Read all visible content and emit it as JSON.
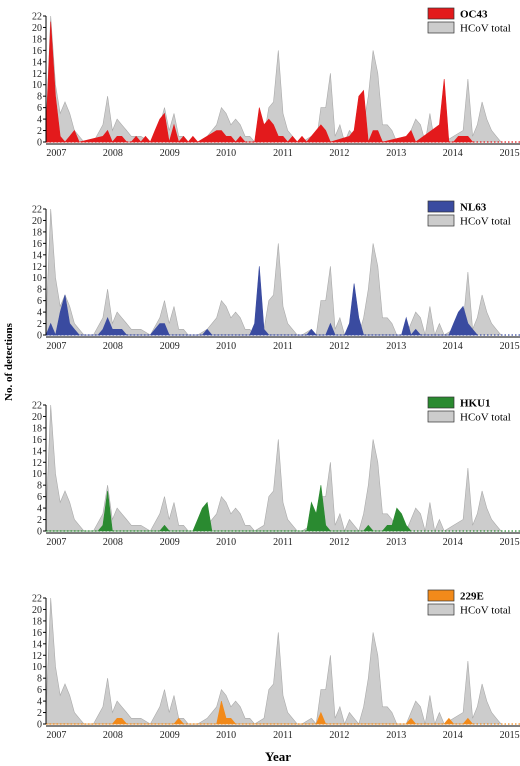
{
  "chart_data": {
    "type": "area",
    "ylabel": "No. of detections",
    "xlabel": "Year",
    "ylim": [
      0,
      22
    ],
    "yticks": [
      "0",
      "2",
      "4",
      "6",
      "8",
      "10",
      "12",
      "14",
      "16",
      "18",
      "20",
      "22"
    ],
    "xlim": [
      0,
      100
    ],
    "year_ticks": [
      {
        "label": "2007",
        "x": 2.2
      },
      {
        "label": "2008",
        "x": 14.1
      },
      {
        "label": "2009",
        "x": 26.1
      },
      {
        "label": "2010",
        "x": 38.0
      },
      {
        "label": "2011",
        "x": 50.0
      },
      {
        "label": "2012",
        "x": 61.9
      },
      {
        "label": "2013",
        "x": 73.9
      },
      {
        "label": "2014",
        "x": 85.8
      },
      {
        "label": "2015",
        "x": 97.8
      }
    ],
    "total": {
      "name": "HCoV total",
      "color": "#cccccc",
      "points": [
        [
          0,
          2
        ],
        [
          1,
          22
        ],
        [
          2,
          10
        ],
        [
          3,
          5
        ],
        [
          4,
          7
        ],
        [
          5,
          5
        ],
        [
          6,
          2
        ],
        [
          7,
          1
        ],
        [
          8,
          0
        ],
        [
          10,
          0
        ],
        [
          12,
          3
        ],
        [
          13,
          8
        ],
        [
          14,
          2
        ],
        [
          15,
          4
        ],
        [
          16,
          3
        ],
        [
          17,
          2
        ],
        [
          18,
          1
        ],
        [
          20,
          1
        ],
        [
          22,
          0
        ],
        [
          24,
          3
        ],
        [
          25,
          6
        ],
        [
          26,
          2
        ],
        [
          27,
          5
        ],
        [
          28,
          1
        ],
        [
          29,
          1
        ],
        [
          30,
          0
        ],
        [
          32,
          0
        ],
        [
          34,
          1
        ],
        [
          36,
          3
        ],
        [
          37,
          6
        ],
        [
          38,
          5
        ],
        [
          39,
          3
        ],
        [
          40,
          4
        ],
        [
          41,
          3
        ],
        [
          42,
          1
        ],
        [
          43,
          1
        ],
        [
          44,
          0
        ],
        [
          46,
          1
        ],
        [
          47,
          6
        ],
        [
          48,
          7
        ],
        [
          49,
          16
        ],
        [
          50,
          5
        ],
        [
          51,
          2
        ],
        [
          52,
          1
        ],
        [
          53,
          0
        ],
        [
          54,
          0
        ],
        [
          56,
          1
        ],
        [
          57,
          0
        ],
        [
          58,
          6
        ],
        [
          59,
          6
        ],
        [
          60,
          12
        ],
        [
          61,
          1
        ],
        [
          62,
          3
        ],
        [
          63,
          0
        ],
        [
          64,
          2
        ],
        [
          65,
          1
        ],
        [
          66,
          0
        ],
        [
          67,
          3
        ],
        [
          68,
          8
        ],
        [
          69,
          16
        ],
        [
          70,
          12
        ],
        [
          71,
          3
        ],
        [
          72,
          3
        ],
        [
          73,
          2
        ],
        [
          74,
          0
        ],
        [
          76,
          0
        ],
        [
          78,
          4
        ],
        [
          79,
          3
        ],
        [
          80,
          0
        ],
        [
          81,
          5
        ],
        [
          82,
          0
        ],
        [
          83,
          2
        ],
        [
          84,
          0
        ],
        [
          86,
          1
        ],
        [
          88,
          2
        ],
        [
          89,
          11
        ],
        [
          90,
          1
        ],
        [
          91,
          3
        ],
        [
          92,
          7
        ],
        [
          93,
          4
        ],
        [
          94,
          2
        ],
        [
          95,
          1
        ],
        [
          96,
          0
        ]
      ]
    },
    "panels": [
      {
        "name": "OC43",
        "color": "#e31a1c",
        "points": [
          [
            0,
            2
          ],
          [
            1,
            21
          ],
          [
            2,
            8
          ],
          [
            3,
            1
          ],
          [
            4,
            0
          ],
          [
            5,
            1
          ],
          [
            6,
            2
          ],
          [
            7,
            0
          ],
          [
            12,
            1
          ],
          [
            13,
            2
          ],
          [
            14,
            0
          ],
          [
            15,
            1
          ],
          [
            16,
            1
          ],
          [
            17,
            0
          ],
          [
            18,
            0
          ],
          [
            19,
            1
          ],
          [
            20,
            0
          ],
          [
            21,
            1
          ],
          [
            22,
            0
          ],
          [
            23,
            2
          ],
          [
            24,
            4
          ],
          [
            25,
            5
          ],
          [
            26,
            0
          ],
          [
            27,
            3
          ],
          [
            28,
            0
          ],
          [
            29,
            1
          ],
          [
            30,
            0
          ],
          [
            31,
            1
          ],
          [
            32,
            0
          ],
          [
            36,
            2
          ],
          [
            37,
            2
          ],
          [
            38,
            1
          ],
          [
            39,
            1
          ],
          [
            40,
            0
          ],
          [
            41,
            1
          ],
          [
            42,
            0
          ],
          [
            44,
            0
          ],
          [
            45,
            6
          ],
          [
            46,
            3
          ],
          [
            47,
            4
          ],
          [
            48,
            3
          ],
          [
            49,
            1
          ],
          [
            50,
            1
          ],
          [
            51,
            0
          ],
          [
            52,
            1
          ],
          [
            53,
            0
          ],
          [
            54,
            1
          ],
          [
            55,
            0
          ],
          [
            57,
            2
          ],
          [
            58,
            3
          ],
          [
            59,
            2
          ],
          [
            60,
            0
          ],
          [
            64,
            1
          ],
          [
            65,
            2
          ],
          [
            66,
            8
          ],
          [
            67,
            9
          ],
          [
            68,
            0
          ],
          [
            69,
            2
          ],
          [
            70,
            2
          ],
          [
            71,
            0
          ],
          [
            76,
            1
          ],
          [
            77,
            2
          ],
          [
            78,
            0
          ],
          [
            83,
            3
          ],
          [
            84,
            11
          ],
          [
            85,
            0
          ],
          [
            86,
            0
          ],
          [
            87,
            1
          ],
          [
            88,
            1
          ],
          [
            89,
            1
          ],
          [
            90,
            0
          ]
        ]
      },
      {
        "name": "NL63",
        "color": "#3a4ba0",
        "points": [
          [
            0,
            0
          ],
          [
            1,
            2
          ],
          [
            2,
            0
          ],
          [
            3,
            4
          ],
          [
            4,
            7
          ],
          [
            5,
            2
          ],
          [
            6,
            1
          ],
          [
            7,
            0
          ],
          [
            11,
            0
          ],
          [
            12,
            1
          ],
          [
            13,
            3
          ],
          [
            14,
            1
          ],
          [
            15,
            1
          ],
          [
            16,
            1
          ],
          [
            17,
            0
          ],
          [
            22,
            0
          ],
          [
            23,
            1
          ],
          [
            24,
            2
          ],
          [
            25,
            2
          ],
          [
            26,
            0
          ],
          [
            33,
            0
          ],
          [
            34,
            1
          ],
          [
            35,
            0
          ],
          [
            43,
            0
          ],
          [
            44,
            2
          ],
          [
            45,
            12
          ],
          [
            46,
            1
          ],
          [
            47,
            0
          ],
          [
            55,
            0
          ],
          [
            56,
            1
          ],
          [
            57,
            0
          ],
          [
            59,
            0
          ],
          [
            60,
            2
          ],
          [
            61,
            0
          ],
          [
            63,
            0
          ],
          [
            64,
            2
          ],
          [
            65,
            9
          ],
          [
            66,
            3
          ],
          [
            67,
            0
          ],
          [
            75,
            0
          ],
          [
            76,
            3
          ],
          [
            77,
            0
          ],
          [
            78,
            1
          ],
          [
            79,
            0
          ],
          [
            85,
            0
          ],
          [
            86,
            2
          ],
          [
            87,
            4
          ],
          [
            88,
            5
          ],
          [
            89,
            2
          ],
          [
            90,
            1
          ],
          [
            91,
            0
          ]
        ]
      },
      {
        "name": "HKU1",
        "color": "#2a8a30",
        "points": [
          [
            0,
            0
          ],
          [
            11,
            0
          ],
          [
            12,
            1
          ],
          [
            13,
            7
          ],
          [
            14,
            0
          ],
          [
            24,
            0
          ],
          [
            25,
            1
          ],
          [
            26,
            0
          ],
          [
            31,
            0
          ],
          [
            32,
            2
          ],
          [
            33,
            4
          ],
          [
            34,
            5
          ],
          [
            35,
            0
          ],
          [
            55,
            0
          ],
          [
            56,
            5
          ],
          [
            57,
            3
          ],
          [
            58,
            8
          ],
          [
            59,
            1
          ],
          [
            60,
            0
          ],
          [
            67,
            0
          ],
          [
            68,
            1
          ],
          [
            69,
            0
          ],
          [
            71,
            0
          ],
          [
            72,
            1
          ],
          [
            73,
            1
          ],
          [
            74,
            4
          ],
          [
            75,
            3
          ],
          [
            76,
            1
          ],
          [
            77,
            0
          ]
        ]
      },
      {
        "name": "229E",
        "color": "#f28a1a",
        "points": [
          [
            0,
            0
          ],
          [
            14,
            0
          ],
          [
            15,
            1
          ],
          [
            16,
            1
          ],
          [
            17,
            0
          ],
          [
            27,
            0
          ],
          [
            28,
            1
          ],
          [
            29,
            0
          ],
          [
            36,
            0
          ],
          [
            37,
            4
          ],
          [
            38,
            1
          ],
          [
            39,
            1
          ],
          [
            40,
            0
          ],
          [
            57,
            0
          ],
          [
            58,
            2
          ],
          [
            59,
            0
          ],
          [
            76,
            0
          ],
          [
            77,
            1
          ],
          [
            78,
            0
          ],
          [
            84,
            0
          ],
          [
            85,
            1
          ],
          [
            86,
            0
          ],
          [
            88,
            0
          ],
          [
            89,
            1
          ],
          [
            90,
            0
          ]
        ]
      }
    ]
  }
}
